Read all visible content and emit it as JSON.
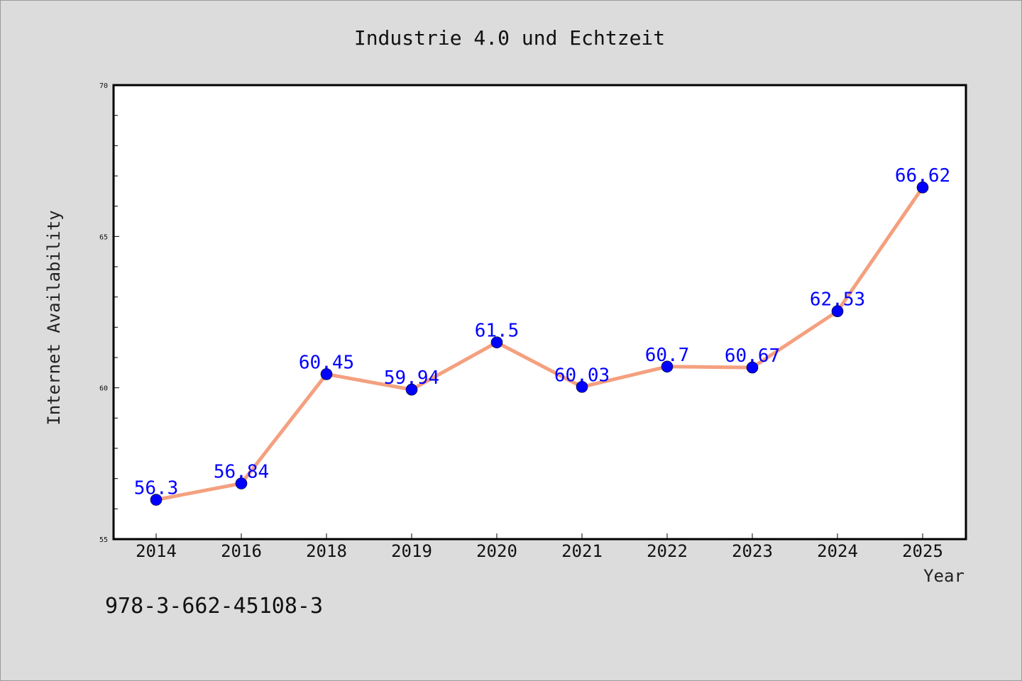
{
  "isbn_text": "978-3-662-45108-3",
  "chart_data": {
    "type": "line",
    "title": "Industrie 4.0 und Echtzeit",
    "xlabel": "Year",
    "ylabel": "Internet Availability",
    "categories": [
      "2014",
      "2016",
      "2018",
      "2019",
      "2020",
      "2021",
      "2022",
      "2023",
      "2024",
      "2025"
    ],
    "values": [
      56.3,
      56.84,
      60.45,
      59.94,
      61.5,
      60.03,
      60.7,
      60.67,
      62.53,
      66.62
    ],
    "data_labels": [
      "56.3",
      "56.84",
      "60.45",
      "59.94",
      "61.5",
      "60.03",
      "60.7",
      "60.67",
      "62.53",
      "66.62"
    ],
    "ylim": [
      55,
      70
    ],
    "yticks": [
      "55",
      "60",
      "65",
      "70"
    ],
    "grid": false,
    "line_color": "#f4a07f",
    "marker_color": "#0000ff",
    "label_color": "#0000ff",
    "background_color": "#dcdcdc",
    "plot_background": "#ffffff"
  }
}
